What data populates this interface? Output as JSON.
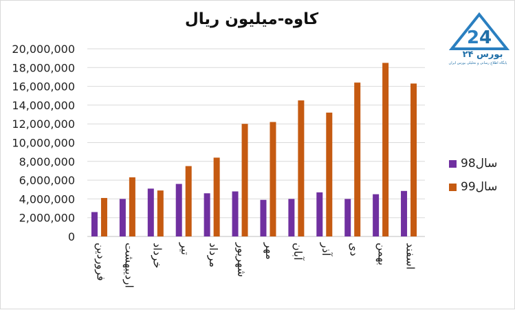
{
  "chart_data": {
    "type": "bar",
    "title": "کاوه-میلیون ریال",
    "categories": [
      "فروردین",
      "اردیبهشت",
      "خرداد",
      "تیر",
      "مرداد",
      "شهریور",
      "مهر",
      "آبان",
      "آذر",
      "دی",
      "بهمن",
      "اسفند"
    ],
    "series": [
      {
        "name": "سال98",
        "color": "#7030a0",
        "values": [
          2600000,
          4000000,
          5100000,
          5600000,
          4600000,
          4800000,
          3900000,
          4000000,
          4700000,
          4000000,
          4500000,
          4850000
        ]
      },
      {
        "name": "سال99",
        "color": "#c55a11",
        "values": [
          4100000,
          6300000,
          4900000,
          7500000,
          8400000,
          12000000,
          12200000,
          14500000,
          13200000,
          16400000,
          18500000,
          16300000
        ]
      }
    ],
    "ylim": [
      0,
      20000000
    ],
    "yticks": [
      "0",
      "2,000,000",
      "4,000,000",
      "6,000,000",
      "8,000,000",
      "10,000,000",
      "12,000,000",
      "14,000,000",
      "16,000,000",
      "18,000,000",
      "20,000,000"
    ],
    "grid": true,
    "legend_position": "right"
  },
  "logo": {
    "word": "بورس ۲۴",
    "subtitle": "پایگاه اطلاع رسانی و تحلیلی بورس ایران"
  }
}
